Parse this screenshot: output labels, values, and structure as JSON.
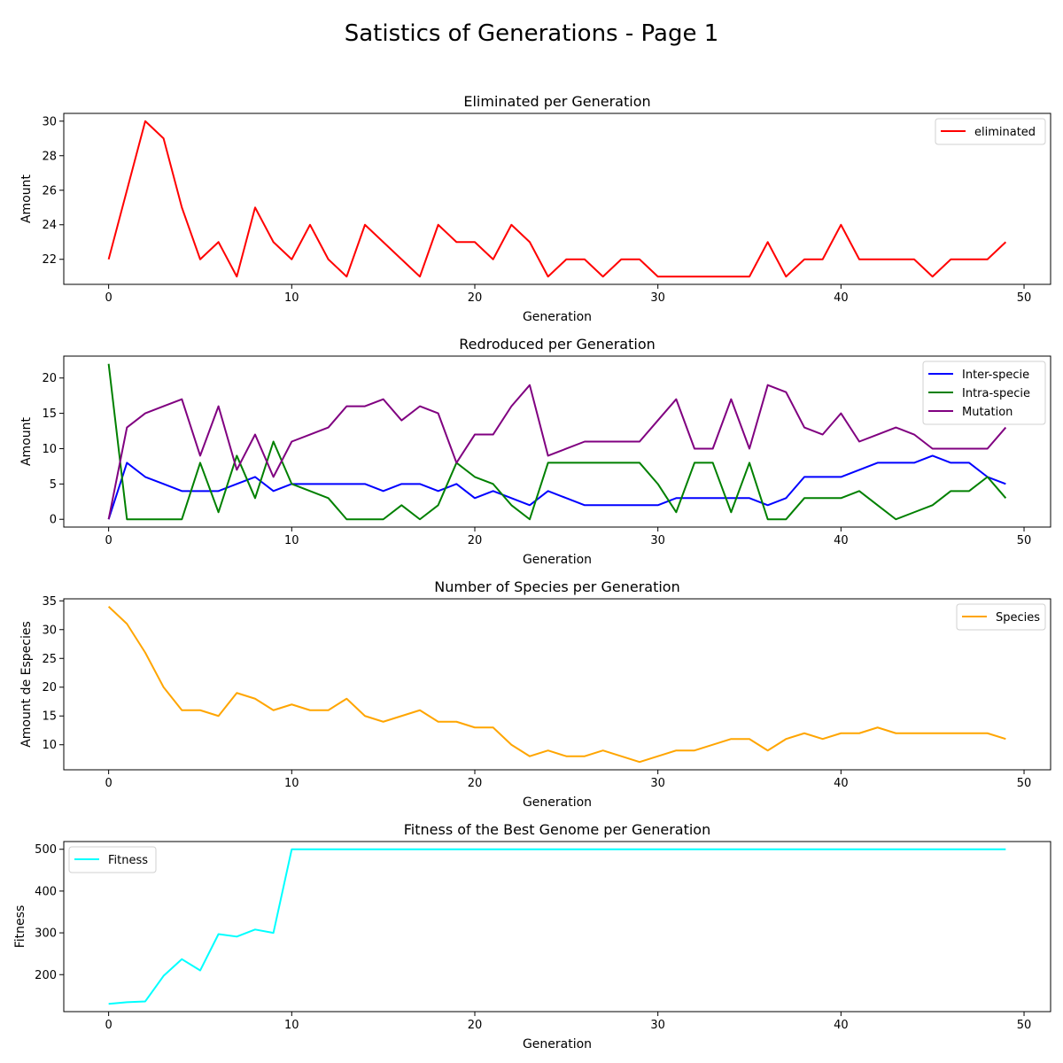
{
  "page": {
    "title": "Satistics of Generations - Page 1"
  },
  "chart_data": [
    {
      "type": "line",
      "title": "Eliminated per Generation",
      "xlabel": "Generation",
      "ylabel": "Amount",
      "xlim": [
        -2.45,
        51.45
      ],
      "ylim": [
        20.55,
        30.45
      ],
      "xticks": [
        0,
        10,
        20,
        30,
        40,
        50
      ],
      "yticks": [
        22,
        24,
        26,
        28,
        30
      ],
      "legend": "upper right",
      "series": [
        {
          "name": "eliminated",
          "color": "#ff0000",
          "values": [
            22,
            26,
            30,
            29,
            25,
            22,
            23,
            21,
            25,
            23,
            22,
            24,
            22,
            21,
            24,
            23,
            22,
            21,
            24,
            23,
            23,
            22,
            24,
            23,
            21,
            22,
            22,
            21,
            22,
            22,
            21,
            21,
            21,
            21,
            21,
            21,
            23,
            21,
            22,
            22,
            24,
            22,
            22,
            22,
            22,
            21,
            22,
            22,
            22,
            23
          ]
        }
      ]
    },
    {
      "type": "line",
      "title": "Redroduced per Generation",
      "xlabel": "Generation",
      "ylabel": "Amount",
      "xlim": [
        -2.45,
        51.45
      ],
      "ylim": [
        -1.1,
        23.1
      ],
      "xticks": [
        0,
        10,
        20,
        30,
        40,
        50
      ],
      "yticks": [
        0,
        5,
        10,
        15,
        20
      ],
      "legend": "upper right",
      "series": [
        {
          "name": "Inter-specie",
          "color": "#0000ff",
          "values": [
            0,
            8,
            6,
            5,
            4,
            4,
            4,
            5,
            6,
            4,
            5,
            5,
            5,
            5,
            5,
            4,
            5,
            5,
            4,
            5,
            3,
            4,
            3,
            2,
            4,
            3,
            2,
            2,
            2,
            2,
            2,
            3,
            3,
            3,
            3,
            3,
            2,
            3,
            6,
            6,
            6,
            7,
            8,
            8,
            8,
            9,
            8,
            8,
            6,
            5
          ]
        },
        {
          "name": "Intra-specie",
          "color": "#008000",
          "values": [
            22,
            0,
            0,
            0,
            0,
            8,
            1,
            9,
            3,
            11,
            5,
            4,
            3,
            0,
            0,
            0,
            2,
            0,
            2,
            8,
            6,
            5,
            2,
            0,
            8,
            8,
            8,
            8,
            8,
            8,
            5,
            1,
            8,
            8,
            1,
            8,
            0,
            0,
            3,
            3,
            3,
            4,
            2,
            0,
            1,
            2,
            4,
            4,
            6,
            3
          ]
        },
        {
          "name": "Mutation",
          "color": "#800080",
          "values": [
            0,
            13,
            15,
            16,
            17,
            9,
            16,
            7,
            12,
            6,
            11,
            12,
            13,
            16,
            16,
            17,
            14,
            16,
            15,
            8,
            12,
            12,
            16,
            19,
            9,
            10,
            11,
            11,
            11,
            11,
            14,
            17,
            10,
            10,
            17,
            10,
            19,
            18,
            13,
            12,
            15,
            11,
            12,
            13,
            12,
            10,
            10,
            10,
            10,
            13
          ]
        }
      ]
    },
    {
      "type": "line",
      "title": "Number of Species per Generation",
      "xlabel": "Generation",
      "ylabel": "Amount de Especies",
      "xlim": [
        -2.45,
        51.45
      ],
      "ylim": [
        5.65,
        35.35
      ],
      "xticks": [
        0,
        10,
        20,
        30,
        40,
        50
      ],
      "yticks": [
        10,
        15,
        20,
        25,
        30,
        35
      ],
      "legend": "upper right",
      "series": [
        {
          "name": "Species",
          "color": "#ffa500",
          "values": [
            34,
            31,
            26,
            20,
            16,
            16,
            15,
            19,
            18,
            16,
            17,
            16,
            16,
            18,
            15,
            14,
            15,
            16,
            14,
            14,
            13,
            13,
            10,
            8,
            9,
            8,
            8,
            9,
            8,
            7,
            8,
            9,
            9,
            10,
            11,
            11,
            9,
            11,
            12,
            11,
            12,
            12,
            13,
            12,
            12,
            12,
            12,
            12,
            12,
            11
          ]
        }
      ]
    },
    {
      "type": "line",
      "title": "Fitness of the Best Genome per Generation",
      "xlabel": "Generation",
      "ylabel": "Fitness",
      "xlim": [
        -2.45,
        51.45
      ],
      "ylim": [
        111.5,
        518.5
      ],
      "xticks": [
        0,
        10,
        20,
        30,
        40,
        50
      ],
      "yticks": [
        200,
        300,
        400,
        500
      ],
      "legend": "upper left",
      "series": [
        {
          "name": "Fitness",
          "color": "#00ffff",
          "values": [
            130,
            134,
            136,
            197,
            237,
            210,
            297,
            291,
            308,
            300,
            500,
            500,
            500,
            500,
            500,
            500,
            500,
            500,
            500,
            500,
            500,
            500,
            500,
            500,
            500,
            500,
            500,
            500,
            500,
            500,
            500,
            500,
            500,
            500,
            500,
            500,
            500,
            500,
            500,
            500,
            500,
            500,
            500,
            500,
            500,
            500,
            500,
            500,
            500,
            500
          ]
        }
      ]
    }
  ]
}
